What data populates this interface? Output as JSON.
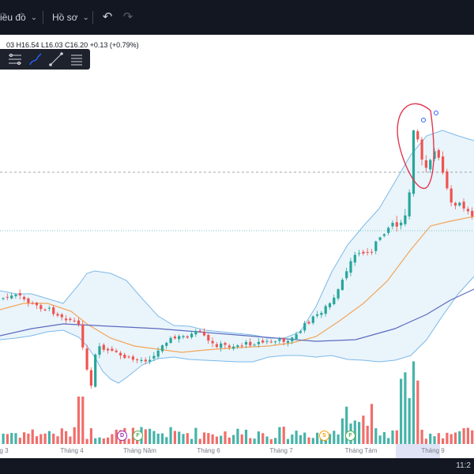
{
  "topbar": {
    "chart_type_label": "iều đồ",
    "profile_label": "Hồ sơ"
  },
  "legend": {
    "ohlc_text": "03 H16.54 L16.03 C16.20 +0.13 (+0.79%)"
  },
  "drawing_tools": [
    "measure-icon",
    "brush-icon",
    "trend-line-icon",
    "text-lines-icon"
  ],
  "clock": "11:2",
  "colors": {
    "up": "#26a69a",
    "down": "#ef5350",
    "band_line": "#7cb9e8",
    "band_fill": "#eaf4fb",
    "ma_orange": "#f2a65a",
    "ma_blue": "#5b6bbf",
    "annotation": "#e0384f",
    "background_dark": "#131722"
  },
  "chart_data": {
    "type": "candlestick",
    "x_axis_labels": [
      "g 3",
      "Tháng 4",
      "Tháng Năm",
      "Tháng 6",
      "Tháng 7",
      "Tháng Tám",
      "Tháng 9"
    ],
    "event_badges": [
      "D",
      "F",
      "S",
      "F"
    ],
    "overlays": [
      "bollinger_bands",
      "moving_average_orange",
      "moving_average_blue",
      "volume_bars"
    ],
    "annotations": [
      "circled-peak-candles"
    ]
  }
}
